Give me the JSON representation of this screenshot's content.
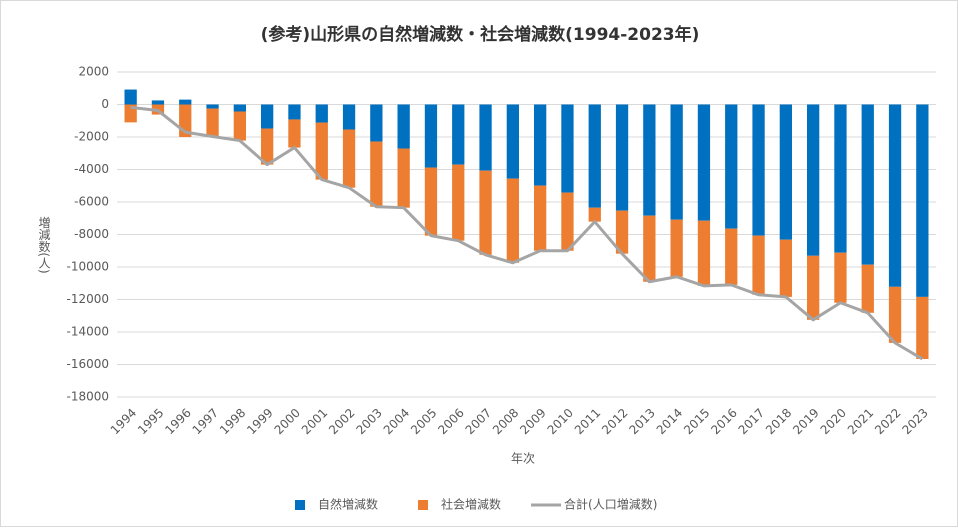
{
  "chart_data": {
    "type": "bar",
    "stacked": true,
    "title": "(参考)山形県の自然増減数・社会増減数(1994-2023年)",
    "x_label": "年次",
    "y_label": "増減数(人)",
    "categories": [
      "1994",
      "1995",
      "1996",
      "1997",
      "1998",
      "1999",
      "2000",
      "2001",
      "2002",
      "2003",
      "2004",
      "2005",
      "2006",
      "2007",
      "2008",
      "2009",
      "2010",
      "2011",
      "2012",
      "2013",
      "2014",
      "2015",
      "2016",
      "2017",
      "2018",
      "2019",
      "2020",
      "2021",
      "2022",
      "2023"
    ],
    "series": [
      {
        "name": "自然増減数",
        "color": "#0070c0",
        "type": "bar",
        "values": [
          920,
          250,
          300,
          -250,
          -430,
          -1480,
          -920,
          -1110,
          -1540,
          -2280,
          -2710,
          -3880,
          -3700,
          -4070,
          -4560,
          -4990,
          -5420,
          -6350,
          -6530,
          -6840,
          -7090,
          -7150,
          -7640,
          -8070,
          -8320,
          -9310,
          -9120,
          -9860,
          -11220,
          -11840
        ]
      },
      {
        "name": "社会増減数",
        "color": "#ed7d31",
        "type": "bar",
        "values": [
          -1100,
          -620,
          -2000,
          -1720,
          -1790,
          -2220,
          -1730,
          -3510,
          -3580,
          -4010,
          -3640,
          -4190,
          -4680,
          -5180,
          -5180,
          -4010,
          -3580,
          -860,
          -2650,
          -4070,
          -3510,
          -4010,
          -3460,
          -3640,
          -3520,
          -3940,
          -3080,
          -2960,
          -3450,
          -3820
        ]
      },
      {
        "name": "合計(人口増減数)",
        "color": "#a5a5a5",
        "type": "line",
        "values": [
          -180,
          -370,
          -1700,
          -1970,
          -2220,
          -3700,
          -2650,
          -4620,
          -5120,
          -6290,
          -6350,
          -8070,
          -8380,
          -9250,
          -9740,
          -9000,
          -9000,
          -7210,
          -9180,
          -10910,
          -10600,
          -11160,
          -11100,
          -11710,
          -11840,
          -13250,
          -12200,
          -12820,
          -14670,
          -15660
        ]
      }
    ],
    "ylim": [
      -18000,
      2000
    ],
    "yticks": [
      -18000,
      -16000,
      -14000,
      -12000,
      -10000,
      -8000,
      -6000,
      -4000,
      -2000,
      0,
      2000
    ],
    "grid": true,
    "legend": "bottom"
  }
}
